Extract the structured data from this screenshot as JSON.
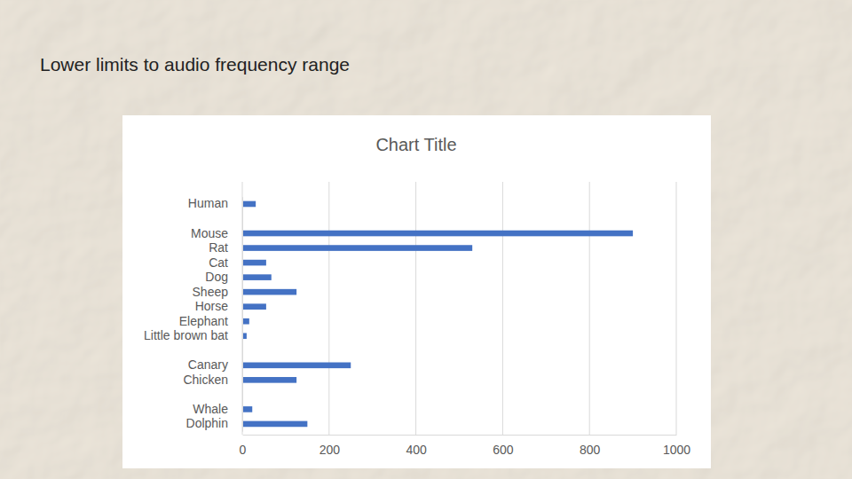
{
  "slide": {
    "title": "Lower limits to audio frequency range"
  },
  "chart_data": {
    "type": "bar",
    "orientation": "horizontal",
    "title": "Chart Title",
    "categories": [
      "Human",
      null,
      "Mouse",
      "Rat",
      "Cat",
      "Dog",
      "Sheep",
      "Horse",
      "Elephant",
      "Little brown bat",
      null,
      "Canary",
      "Chicken",
      null,
      "Whale",
      "Dolphin"
    ],
    "values": [
      31,
      null,
      900,
      530,
      55,
      67,
      125,
      55,
      16,
      10,
      null,
      250,
      125,
      null,
      23,
      150
    ],
    "color": "#4472c4",
    "xlim": [
      0,
      1000
    ],
    "xticks": [
      0,
      200,
      400,
      600,
      800,
      1000
    ],
    "grid": true
  }
}
